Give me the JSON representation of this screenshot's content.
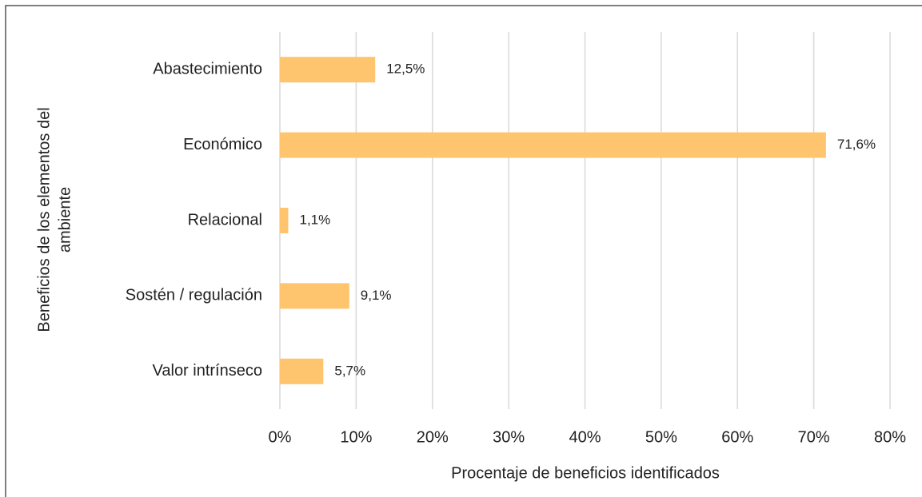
{
  "chart_data": {
    "type": "hbar",
    "categories": [
      "Abastecimiento",
      "Económico",
      "Relacional",
      "Sostén / regulación",
      "Valor intrínseco"
    ],
    "values": [
      12.5,
      71.6,
      1.1,
      9.1,
      5.7
    ],
    "value_labels": [
      "12,5%",
      "71,6%",
      "1,1%",
      "9,1%",
      "5,7%"
    ],
    "color": "#ffc46e",
    "xlim": [
      0,
      80
    ],
    "xticks": [
      {
        "value": 0,
        "label": "0%"
      },
      {
        "value": 10,
        "label": "10%"
      },
      {
        "value": 20,
        "label": "20%"
      },
      {
        "value": 30,
        "label": "30%"
      },
      {
        "value": 40,
        "label": "40%"
      },
      {
        "value": 50,
        "label": "50%"
      },
      {
        "value": 60,
        "label": "60%"
      },
      {
        "value": 70,
        "label": "70%"
      },
      {
        "value": 80,
        "label": "80%"
      }
    ],
    "x_label": "Procentaje de beneficios identificados",
    "y_label": [
      "Beneficios de los elementos del",
      "ambiente"
    ],
    "grid": true
  }
}
